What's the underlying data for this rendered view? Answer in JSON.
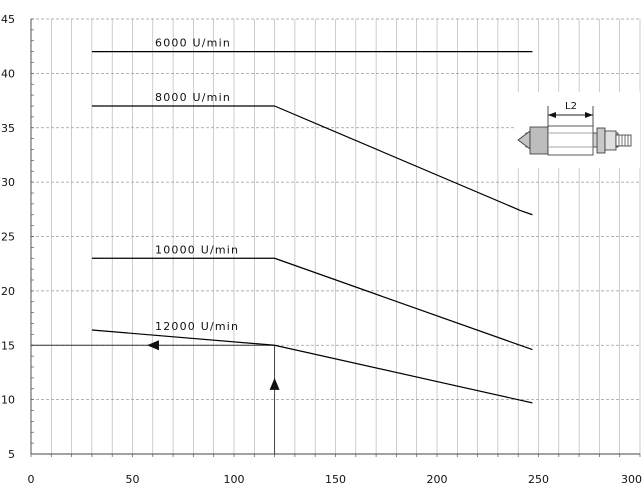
{
  "chart_data": {
    "type": "line",
    "xlim": [
      0,
      300
    ],
    "ylim": [
      5,
      45
    ],
    "xticks": [
      0,
      50,
      100,
      150,
      200,
      250,
      300
    ],
    "yticks": [
      5,
      10,
      15,
      20,
      25,
      30,
      35,
      40,
      45
    ],
    "grid": true,
    "x_grid_step": 10,
    "y_grid_step": 5,
    "y_minor_step": 1,
    "series": [
      {
        "name": "6000 U/min",
        "points": [
          [
            30,
            42
          ],
          [
            247,
            42
          ]
        ]
      },
      {
        "name": "8000 U/min",
        "points": [
          [
            30,
            37
          ],
          [
            120,
            37
          ],
          [
            241,
            27.4
          ],
          [
            247,
            27
          ]
        ]
      },
      {
        "name": "10000 U/min",
        "points": [
          [
            30,
            23
          ],
          [
            120,
            23
          ],
          [
            247,
            14.6
          ]
        ]
      },
      {
        "name": "12000 U/min",
        "points": [
          [
            30,
            16.4
          ],
          [
            120,
            15
          ],
          [
            247,
            9.7
          ]
        ]
      }
    ],
    "reference_lines": [
      {
        "orientation": "vertical",
        "x": 120,
        "from_y": 5,
        "to_y": 15,
        "arrow": "up"
      },
      {
        "orientation": "horizontal",
        "y": 15,
        "from_x": 0,
        "to_x": 120,
        "arrow": "left"
      }
    ],
    "line_color": "#000000",
    "grid_color": "#9a9a9a"
  },
  "inset": {
    "dimension_label": "L2"
  }
}
